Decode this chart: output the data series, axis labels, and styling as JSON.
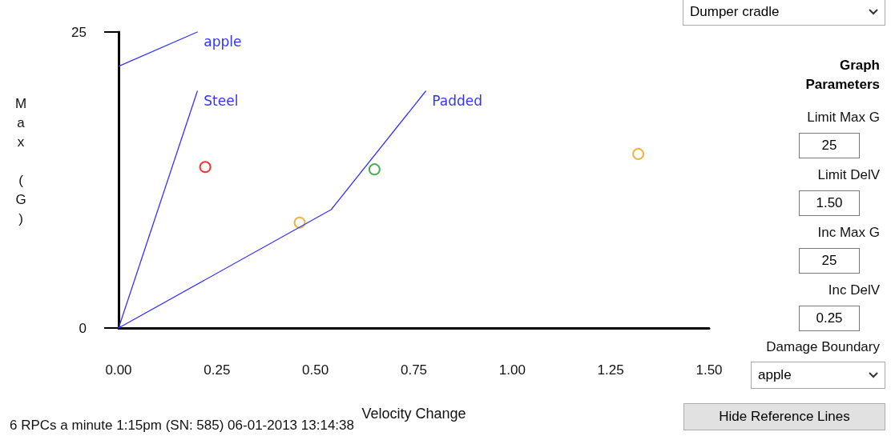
{
  "chart_data": {
    "type": "line",
    "xlabel": "Velocity Change",
    "ylabel": "Max (G)",
    "xlim": [
      0,
      1.5
    ],
    "xticks": [
      {
        "value": 0,
        "label": "0.00"
      },
      0.25,
      {
        "value": 0.5,
        "label": "0.50"
      },
      0.75,
      {
        "value": 1,
        "label": "1.00"
      },
      1.25,
      {
        "value": 1.5,
        "label": "1.50"
      }
    ],
    "ylim": [
      0,
      25
    ],
    "yticks": [
      0,
      25
    ],
    "grid": false,
    "legend": false,
    "marker": "none",
    "line_style": "solid",
    "series": [
      {
        "name": "apple",
        "color": "#3333ff",
        "x": [
          0,
          0.2
        ],
        "values": [
          22.1,
          25
        ]
      },
      {
        "name": "Steel",
        "color": "#3333ff",
        "x": [
          0,
          0.2
        ],
        "values": [
          0,
          20
        ]
      },
      {
        "name": "Padded",
        "color": "#3333ff",
        "x": [
          0,
          0.54,
          0.78
        ],
        "values": [
          0,
          10,
          20
        ]
      },
      {
        "type": "scatter",
        "marker": "circle",
        "color": "#ff0000",
        "x": [
          0.22
        ],
        "values": [
          13.6
        ]
      },
      {
        "type": "scatter",
        "marker": "circle",
        "color": "#e8a317",
        "x": [
          0.46,
          1.32
        ],
        "values": [
          8.9,
          14.7
        ]
      },
      {
        "type": "scatter",
        "marker": "circle",
        "color": "#22992b",
        "x": [
          0.65
        ],
        "values": [
          13.4
        ]
      }
    ],
    "annotations": [
      "6 RPCs a minute 1:15pm (SN: 585) 06-01-2013 13:14:38",
      "Dumper cradle",
      "Graph Parameters",
      "Limit Max G",
      "25",
      "Limit DelV",
      "1.50",
      "Inc Max G",
      "25",
      "Inc DelV",
      "0.25",
      "Damage Boundary",
      "apple",
      "Hide Reference Lines"
    ]
  }
}
